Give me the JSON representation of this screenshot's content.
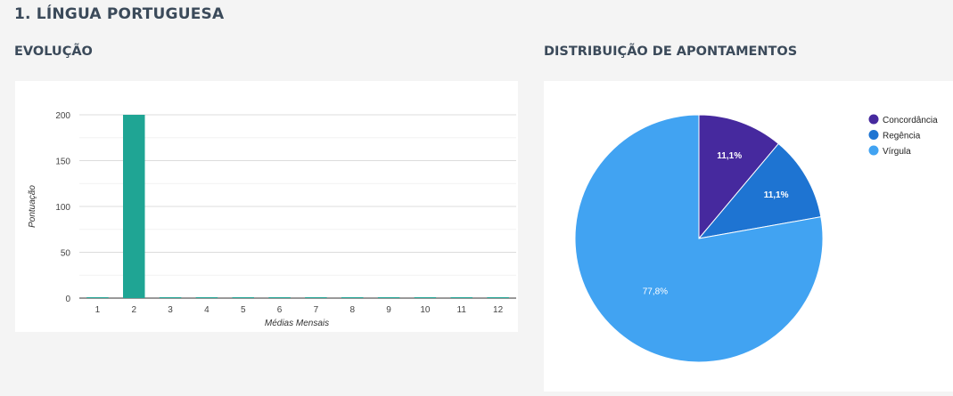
{
  "page": {
    "title": "1. LÍNGUA PORTUGUESA"
  },
  "sections": {
    "evolution": "EVOLUÇÃO",
    "distribution": "DISTRIBUIÇÃO DE APONTAMENTOS"
  },
  "chart_data": [
    {
      "type": "bar",
      "categories": [
        "1",
        "2",
        "3",
        "4",
        "5",
        "6",
        "7",
        "8",
        "9",
        "10",
        "11",
        "12"
      ],
      "values": [
        0,
        200,
        0,
        0,
        0,
        0,
        0,
        0,
        0,
        0,
        0,
        0
      ],
      "ylabel": "Pontuação",
      "xlabel": "Médias Mensais",
      "ylim": [
        0,
        200
      ],
      "yticks": [
        0,
        50,
        100,
        150,
        200
      ],
      "grid": true,
      "color": "#1fa594"
    },
    {
      "type": "pie",
      "labels": [
        "Concordância",
        "Regência",
        "Vírgula"
      ],
      "values": [
        11.1,
        11.1,
        77.8
      ],
      "value_labels": [
        "11,1%",
        "11,1%",
        "77,8%"
      ],
      "colors": [
        "#46299e",
        "#1e74d2",
        "#41a3f2"
      ],
      "legend": "right"
    }
  ]
}
